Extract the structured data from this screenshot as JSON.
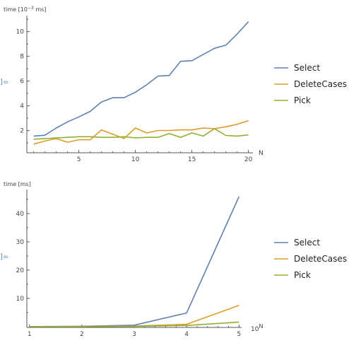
{
  "cell_marker": "]=",
  "chart_data": [
    {
      "type": "line",
      "ylabel_main": "time [10",
      "ylabel_exp": "−3",
      "ylabel_unit": " ms]",
      "xlabel": "N",
      "xlabel_exp": "",
      "xlim": [
        0.4,
        20.4
      ],
      "ylim": [
        0.2,
        11.3
      ],
      "xticks": [
        5,
        10,
        15,
        20
      ],
      "yticks": [
        2,
        4,
        6,
        8,
        10
      ],
      "x_minor_ticks": [
        1,
        2,
        3,
        4,
        6,
        7,
        8,
        9,
        11,
        12,
        13,
        14,
        16,
        17,
        18,
        19
      ],
      "y_minor_ticks": [
        1,
        3,
        5,
        7,
        9,
        11
      ],
      "legend_position": "right",
      "x": [
        1,
        2,
        3,
        4,
        5,
        6,
        7,
        8,
        9,
        10,
        11,
        12,
        13,
        14,
        15,
        16,
        17,
        18,
        19,
        20
      ],
      "series": [
        {
          "name": "Select",
          "color": "#5e81b5",
          "values": [
            1.55,
            1.62,
            2.2,
            2.7,
            3.1,
            3.55,
            4.3,
            4.65,
            4.65,
            5.1,
            5.7,
            6.4,
            6.45,
            7.6,
            7.65,
            8.15,
            8.65,
            8.9,
            9.8,
            10.8
          ]
        },
        {
          "name": "DeleteCases",
          "color": "#e19c24",
          "values": [
            0.9,
            1.15,
            1.35,
            1.05,
            1.25,
            1.25,
            2.05,
            1.7,
            1.35,
            2.2,
            1.8,
            2.0,
            2.0,
            2.05,
            2.05,
            2.2,
            2.15,
            2.3,
            2.5,
            2.8
          ]
        },
        {
          "name": "Pick",
          "color": "#8fb032",
          "values": [
            1.3,
            1.35,
            1.4,
            1.45,
            1.5,
            1.5,
            1.45,
            1.45,
            1.5,
            1.4,
            1.45,
            1.45,
            1.75,
            1.45,
            1.8,
            1.55,
            2.15,
            1.6,
            1.55,
            1.65
          ]
        }
      ]
    },
    {
      "type": "line",
      "ylabel_main": "time [ms]",
      "ylabel_exp": "",
      "ylabel_unit": "",
      "xlabel": "10",
      "xlabel_exp": "N",
      "xlim": [
        0.95,
        5.05
      ],
      "ylim": [
        -0.3,
        48.5
      ],
      "xticks": [
        1,
        2,
        3,
        4,
        5
      ],
      "yticks": [
        10,
        20,
        30,
        40
      ],
      "x_minor_ticks": [
        1.2,
        1.4,
        1.6,
        1.8,
        2.2,
        2.4,
        2.6,
        2.8,
        3.2,
        3.4,
        3.6,
        3.8,
        4.2,
        4.4,
        4.6,
        4.8
      ],
      "y_minor_ticks": [
        5,
        15,
        25,
        35,
        45
      ],
      "legend_position": "right",
      "x": [
        1,
        2,
        3,
        4,
        5
      ],
      "series": [
        {
          "name": "Select",
          "color": "#5e81b5",
          "values": [
            0.0,
            0.1,
            0.5,
            4.8,
            46.0
          ]
        },
        {
          "name": "DeleteCases",
          "color": "#e19c24",
          "values": [
            0.0,
            0.0,
            0.2,
            0.8,
            7.5
          ]
        },
        {
          "name": "Pick",
          "color": "#8fb032",
          "values": [
            0.0,
            0.0,
            0.1,
            0.4,
            1.6
          ]
        }
      ]
    }
  ]
}
